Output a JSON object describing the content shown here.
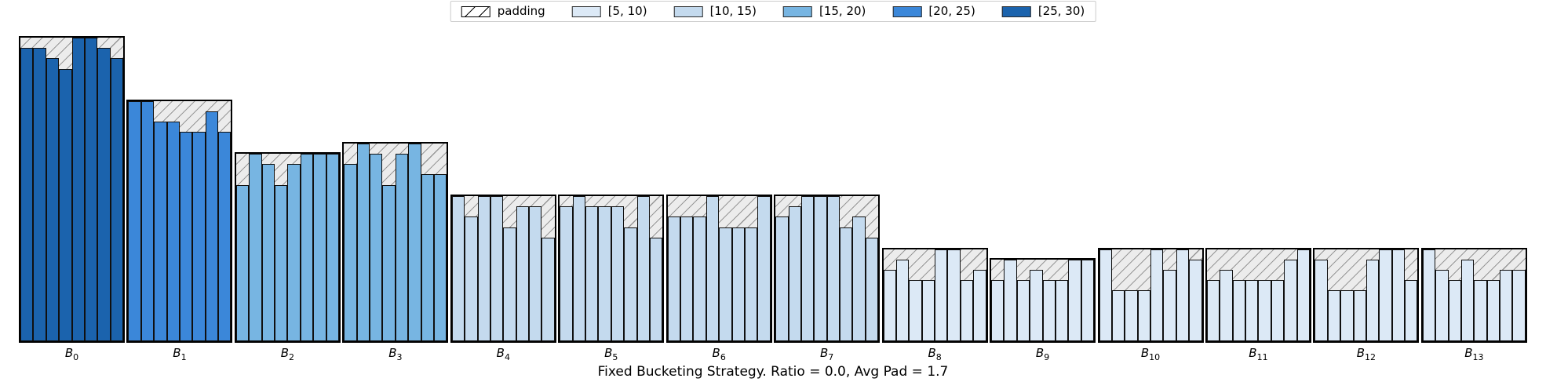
{
  "chart_data": {
    "type": "bar",
    "title": "Fixed Bucketing Strategy. Ratio = 0.0, Avg Pad = 1.7",
    "xlabel": "",
    "ylabel": "",
    "ylim": [
      0,
      29
    ],
    "grid": false,
    "legend_position": "top-center",
    "legend": {
      "padding_label": "padding",
      "bins": [
        {
          "label": "[5, 10)",
          "color": "#dce9f6"
        },
        {
          "label": "[10, 15)",
          "color": "#c4daee"
        },
        {
          "label": "[15, 20)",
          "color": "#77b5e2"
        },
        {
          "label": "[20, 25)",
          "color": "#3b87d9"
        },
        {
          "label": "[25, 30)",
          "color": "#1b63ad"
        }
      ]
    },
    "bin_edges": [
      5,
      10,
      15,
      20,
      25,
      30
    ],
    "categories": [
      "B0",
      "B1",
      "B2",
      "B3",
      "B4",
      "B5",
      "B6",
      "B7",
      "B8",
      "B9",
      "B10",
      "B11",
      "B12",
      "B13"
    ],
    "buckets": [
      {
        "name": "B0",
        "values": [
          28,
          28,
          27,
          26,
          29,
          29,
          28,
          27
        ]
      },
      {
        "name": "B1",
        "values": [
          23,
          23,
          21,
          21,
          20,
          20,
          22,
          20
        ]
      },
      {
        "name": "B2",
        "values": [
          15,
          18,
          17,
          15,
          17,
          18,
          18,
          18
        ]
      },
      {
        "name": "B3",
        "values": [
          17,
          19,
          18,
          15,
          18,
          19,
          16,
          16
        ]
      },
      {
        "name": "B4",
        "values": [
          14,
          12,
          14,
          14,
          11,
          13,
          13,
          10
        ]
      },
      {
        "name": "B5",
        "values": [
          13,
          14,
          13,
          13,
          13,
          11,
          14,
          10
        ]
      },
      {
        "name": "B6",
        "values": [
          12,
          12,
          12,
          14,
          11,
          11,
          11,
          14
        ]
      },
      {
        "name": "B7",
        "values": [
          12,
          13,
          14,
          14,
          14,
          11,
          12,
          10
        ]
      },
      {
        "name": "B8",
        "values": [
          7,
          8,
          6,
          6,
          9,
          9,
          6,
          7
        ]
      },
      {
        "name": "B9",
        "values": [
          6,
          8,
          6,
          7,
          6,
          6,
          8,
          8
        ]
      },
      {
        "name": "B10",
        "values": [
          9,
          5,
          5,
          5,
          9,
          7,
          9,
          8
        ]
      },
      {
        "name": "B11",
        "values": [
          6,
          7,
          6,
          6,
          6,
          6,
          8,
          9
        ]
      },
      {
        "name": "B12",
        "values": [
          8,
          5,
          5,
          5,
          8,
          9,
          9,
          6
        ]
      },
      {
        "name": "B13",
        "values": [
          9,
          7,
          6,
          8,
          6,
          6,
          7,
          7
        ]
      }
    ],
    "style": {
      "padding_face": "#ececec",
      "hatch_line": "#979797",
      "frame_color": "#000000",
      "bar_edge": "#101010"
    }
  }
}
